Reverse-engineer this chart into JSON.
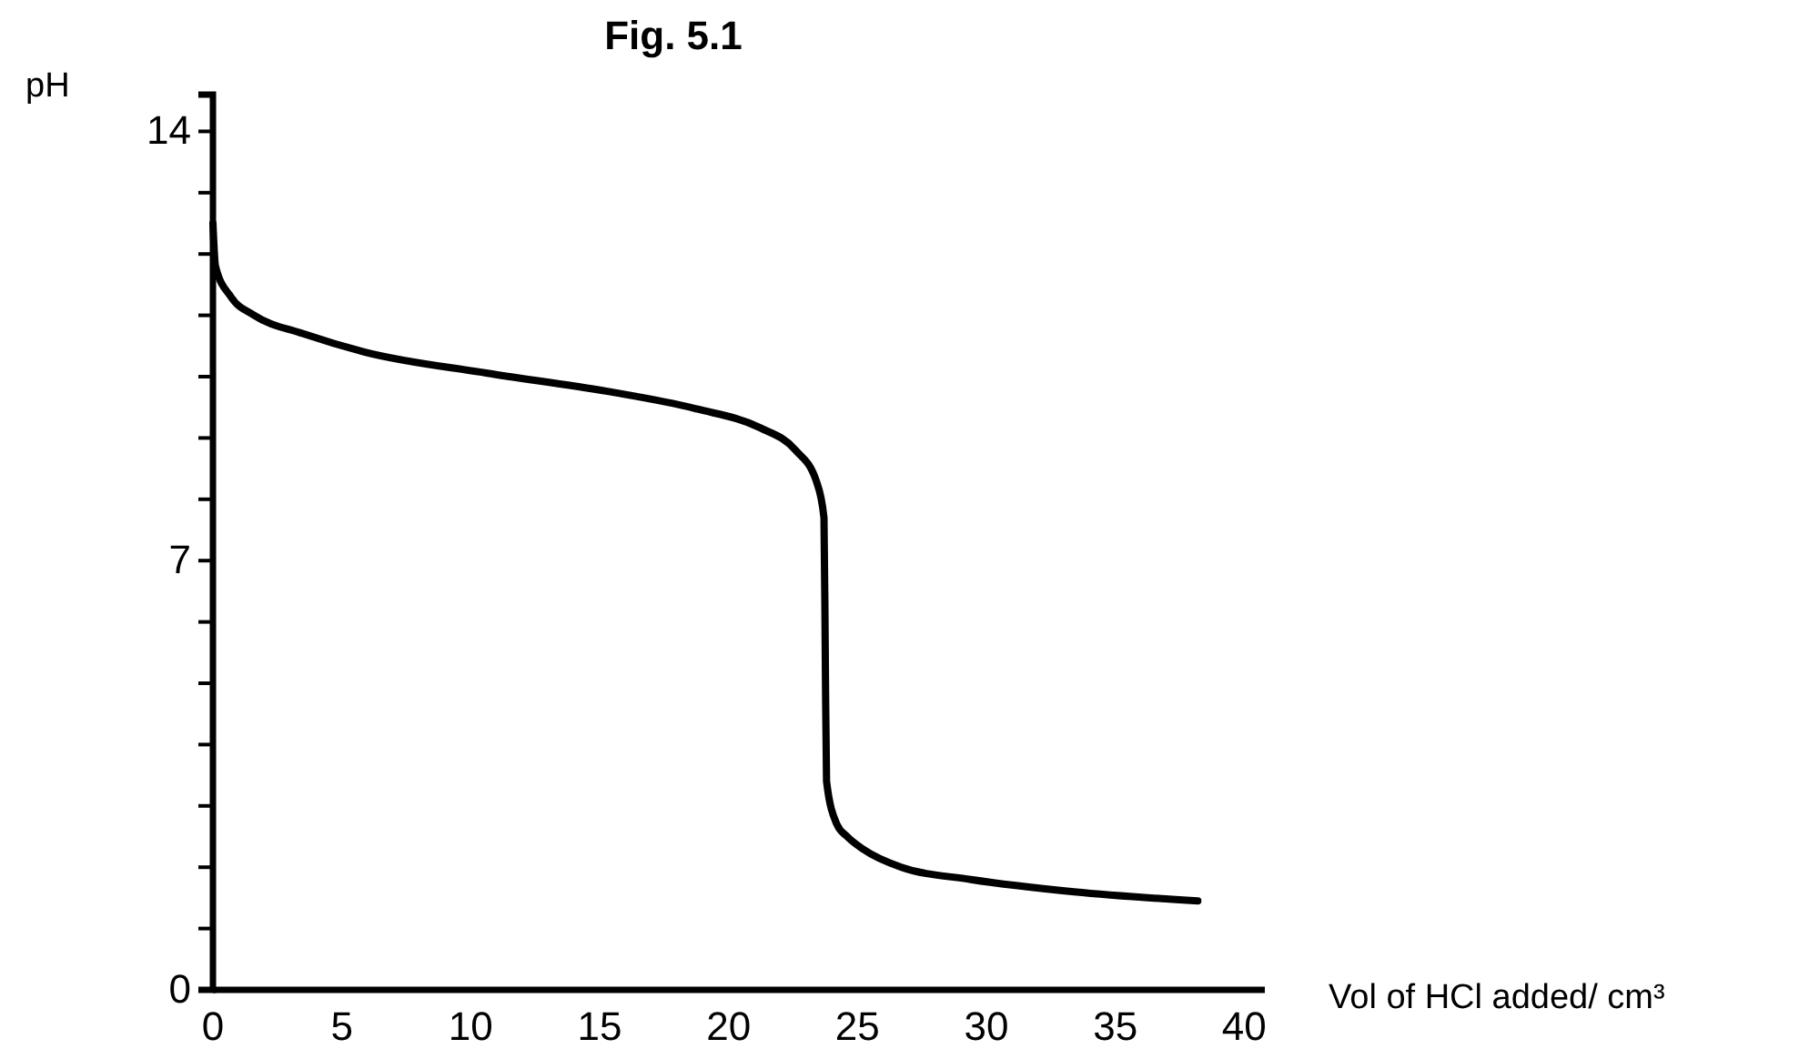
{
  "chart_data": {
    "type": "line",
    "title": "Fig. 5.1",
    "xlabel": "Vol of HCl added/ cm³",
    "ylabel": "pH",
    "xlim": [
      0,
      40.8
    ],
    "xticks": [
      0,
      5,
      10,
      15,
      20,
      25,
      30,
      35,
      40
    ],
    "ylim": [
      0,
      14.6
    ],
    "yticks": [
      0,
      {
        "value": 1,
        "label": null
      },
      {
        "value": 2,
        "label": null
      },
      {
        "value": 3,
        "label": null
      },
      {
        "value": 4,
        "label": null
      },
      {
        "value": 5,
        "label": null
      },
      {
        "value": 6,
        "label": null
      },
      7,
      {
        "value": 8,
        "label": null
      },
      {
        "value": 9,
        "label": null
      },
      {
        "value": 10,
        "label": null
      },
      {
        "value": 11,
        "label": null
      },
      {
        "value": 12,
        "label": null
      },
      {
        "value": 13,
        "label": null
      },
      14
    ],
    "grid": false,
    "marker": "none",
    "line_style": "solid",
    "x": [
      0,
      0.1,
      0.7,
      1.6,
      3.5,
      5.9,
      10.6,
      15.3,
      18.8,
      21.2,
      22.6,
      23.4,
      23.7,
      23.75,
      23.8,
      24.2,
      24.6,
      25.2,
      26.7,
      29.4,
      33.4,
      38.2
    ],
    "series": [
      {
        "color": "#000000",
        "values": [
          12.5,
          11.8,
          11.3,
          11.0,
          10.7,
          10.4,
          10.06,
          9.76,
          9.47,
          9.17,
          8.8,
          8.3,
          7.7,
          5.5,
          3.4,
          2.7,
          2.5,
          2.3,
          2.0,
          1.8,
          1.6,
          1.45
        ]
      }
    ]
  }
}
